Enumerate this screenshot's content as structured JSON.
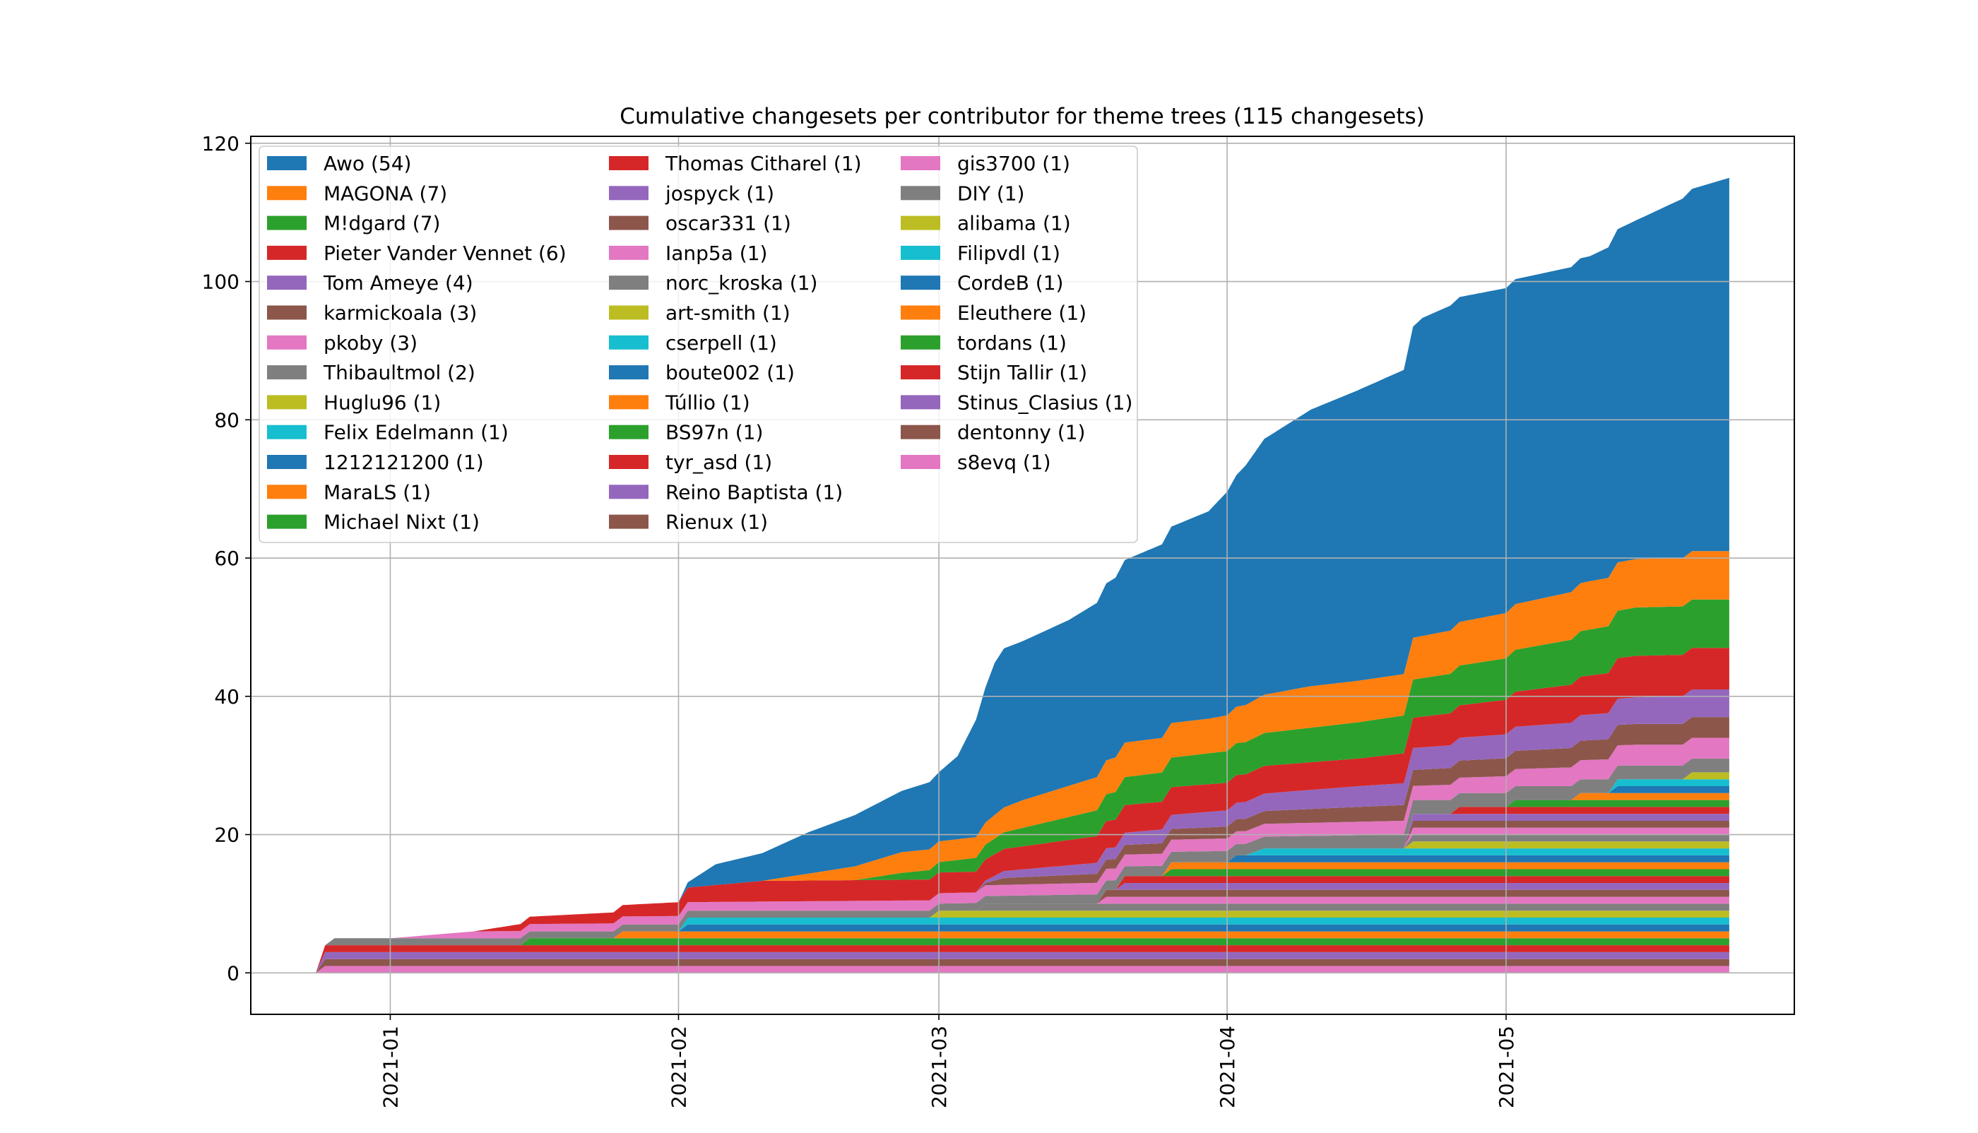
{
  "chart_data": {
    "type": "area",
    "stacked": true,
    "title": "Cumulative changesets per contributor for theme trees (115 changesets)",
    "xlabel": "",
    "ylabel": "",
    "x_type": "date",
    "x_range": [
      "2020-12-17",
      "2021-06-01"
    ],
    "ylim": [
      -6,
      121
    ],
    "x_ticks": [
      "2021-01-01",
      "2021-02-01",
      "2021-03-01",
      "2021-04-01",
      "2021-05-01"
    ],
    "x_tick_labels": [
      "2021-01",
      "2021-02",
      "2021-03",
      "2021-04",
      "2021-05"
    ],
    "y_ticks": [
      0,
      20,
      40,
      60,
      80,
      100,
      120
    ],
    "y_tick_labels": [
      "0",
      "20",
      "40",
      "60",
      "80",
      "100",
      "120"
    ],
    "grid": true,
    "legend_position": "top-left",
    "legend_columns": 3,
    "series": [
      {
        "name": "Awo (54)",
        "color": "#1f77b4",
        "points": [
          [
            "2021-02-01",
            0
          ],
          [
            "2021-02-05",
            3
          ],
          [
            "2021-02-10",
            4
          ],
          [
            "2021-02-15",
            6
          ],
          [
            "2021-02-22",
            8
          ],
          [
            "2021-03-01",
            10
          ],
          [
            "2021-03-03",
            12
          ],
          [
            "2021-03-05",
            17
          ],
          [
            "2021-03-07",
            22
          ],
          [
            "2021-03-08",
            23
          ],
          [
            "2021-03-10",
            23
          ],
          [
            "2021-03-15",
            24
          ],
          [
            "2021-03-20",
            26
          ],
          [
            "2021-03-25",
            28
          ],
          [
            "2021-03-30",
            30
          ],
          [
            "2021-04-05",
            37
          ],
          [
            "2021-04-10",
            40
          ],
          [
            "2021-04-15",
            42
          ],
          [
            "2021-04-20",
            44
          ],
          [
            "2021-04-22",
            46
          ],
          [
            "2021-04-25",
            47
          ],
          [
            "2021-04-30",
            47
          ],
          [
            "2021-05-05",
            47
          ],
          [
            "2021-05-10",
            47
          ],
          [
            "2021-05-15",
            49
          ],
          [
            "2021-05-20",
            52
          ],
          [
            "2021-05-25",
            54
          ]
        ]
      },
      {
        "name": "MAGONA (7)",
        "color": "#ff7f0e",
        "points": [
          [
            "2021-02-10",
            0
          ],
          [
            "2021-02-15",
            1
          ],
          [
            "2021-02-20",
            2
          ],
          [
            "2021-02-25",
            3
          ],
          [
            "2021-03-01",
            3
          ],
          [
            "2021-03-05",
            3
          ],
          [
            "2021-03-10",
            4
          ],
          [
            "2021-03-20",
            5
          ],
          [
            "2021-03-30",
            5
          ],
          [
            "2021-04-10",
            6
          ],
          [
            "2021-04-20",
            6
          ],
          [
            "2021-05-10",
            7
          ],
          [
            "2021-05-25",
            7
          ]
        ]
      },
      {
        "name": "M!dgard (7)",
        "color": "#2ca02c",
        "points": [
          [
            "2021-02-20",
            0
          ],
          [
            "2021-02-25",
            1
          ],
          [
            "2021-03-05",
            2
          ],
          [
            "2021-03-20",
            4
          ],
          [
            "2021-04-10",
            5
          ],
          [
            "2021-05-01",
            6
          ],
          [
            "2021-05-15",
            7
          ],
          [
            "2021-05-25",
            7
          ]
        ]
      },
      {
        "name": "Pieter Vander Vennet (6)",
        "color": "#d62728",
        "points": [
          [
            "2021-01-10",
            0
          ],
          [
            "2021-01-15",
            1
          ],
          [
            "2021-02-01",
            2
          ],
          [
            "2021-02-10",
            3
          ],
          [
            "2021-03-05",
            3
          ],
          [
            "2021-03-20",
            4
          ],
          [
            "2021-04-15",
            4
          ],
          [
            "2021-05-01",
            5
          ],
          [
            "2021-05-15",
            6
          ],
          [
            "2021-05-25",
            6
          ]
        ]
      },
      {
        "name": "Tom Ameye (4)",
        "color": "#9467bd",
        "points": [
          [
            "2021-03-05",
            0
          ],
          [
            "2021-03-08",
            1
          ],
          [
            "2021-03-25",
            2
          ],
          [
            "2021-04-15",
            3
          ],
          [
            "2021-05-20",
            4
          ],
          [
            "2021-05-25",
            4
          ]
        ]
      },
      {
        "name": "karmickoala (3)",
        "color": "#8c564b",
        "points": [
          [
            "2021-03-05",
            0
          ],
          [
            "2021-03-08",
            1
          ],
          [
            "2021-04-10",
            2
          ],
          [
            "2021-05-15",
            3
          ],
          [
            "2021-05-25",
            3
          ]
        ]
      },
      {
        "name": "pkoby (3)",
        "color": "#e377c2",
        "points": [
          [
            "2021-01-01",
            0
          ],
          [
            "2021-01-10",
            1
          ],
          [
            "2021-04-20",
            2
          ],
          [
            "2021-05-15",
            3
          ],
          [
            "2021-05-25",
            3
          ]
        ]
      },
      {
        "name": "Thibaultmol (2)",
        "color": "#7f7f7f",
        "points": [
          [
            "2020-12-25",
            0
          ],
          [
            "2020-12-26",
            1
          ],
          [
            "2021-02-28",
            1
          ],
          [
            "2021-04-20",
            2
          ],
          [
            "2021-05-25",
            2
          ]
        ]
      },
      {
        "name": "Huglu96 (1)",
        "color": "#bcbd22",
        "points": [
          [
            "2021-05-20",
            0
          ],
          [
            "2021-05-21",
            1
          ],
          [
            "2021-05-25",
            1
          ]
        ]
      },
      {
        "name": "Felix Edelmann (1)",
        "color": "#17becf",
        "points": [
          [
            "2021-05-12",
            0
          ],
          [
            "2021-05-13",
            1
          ],
          [
            "2021-05-25",
            1
          ]
        ]
      },
      {
        "name": "1212121200 (1)",
        "color": "#1f77b4",
        "points": [
          [
            "2021-05-12",
            0
          ],
          [
            "2021-05-13",
            1
          ],
          [
            "2021-05-25",
            1
          ]
        ]
      },
      {
        "name": "MaraLS (1)",
        "color": "#ff7f0e",
        "points": [
          [
            "2021-05-08",
            0
          ],
          [
            "2021-05-09",
            1
          ],
          [
            "2021-05-25",
            1
          ]
        ]
      },
      {
        "name": "Michael Nixt (1)",
        "color": "#2ca02c",
        "points": [
          [
            "2021-05-01",
            0
          ],
          [
            "2021-05-02",
            1
          ],
          [
            "2021-05-25",
            1
          ]
        ]
      },
      {
        "name": "Thomas Citharel (1)",
        "color": "#d62728",
        "points": [
          [
            "2021-04-25",
            0
          ],
          [
            "2021-04-26",
            1
          ],
          [
            "2021-05-25",
            1
          ]
        ]
      },
      {
        "name": "jospyck (1)",
        "color": "#9467bd",
        "points": [
          [
            "2021-04-20",
            0
          ],
          [
            "2021-04-21",
            1
          ],
          [
            "2021-05-25",
            1
          ]
        ]
      },
      {
        "name": "oscar331 (1)",
        "color": "#8c564b",
        "points": [
          [
            "2021-04-20",
            0
          ],
          [
            "2021-04-21",
            1
          ],
          [
            "2021-05-25",
            1
          ]
        ]
      },
      {
        "name": "Ianp5a (1)",
        "color": "#e377c2",
        "points": [
          [
            "2021-04-20",
            0
          ],
          [
            "2021-04-21",
            1
          ],
          [
            "2021-05-25",
            1
          ]
        ]
      },
      {
        "name": "norc_kroska (1)",
        "color": "#7f7f7f",
        "points": [
          [
            "2021-04-20",
            0
          ],
          [
            "2021-04-21",
            1
          ],
          [
            "2021-05-25",
            1
          ]
        ]
      },
      {
        "name": "art-smith (1)",
        "color": "#bcbd22",
        "points": [
          [
            "2021-04-20",
            0
          ],
          [
            "2021-04-21",
            1
          ],
          [
            "2021-05-25",
            1
          ]
        ]
      },
      {
        "name": "cserpell (1)",
        "color": "#17becf",
        "points": [
          [
            "2021-04-03",
            0
          ],
          [
            "2021-04-05",
            1
          ],
          [
            "2021-05-25",
            1
          ]
        ]
      },
      {
        "name": "boute002 (1)",
        "color": "#1f77b4",
        "points": [
          [
            "2021-04-01",
            0
          ],
          [
            "2021-04-02",
            1
          ],
          [
            "2021-05-25",
            1
          ]
        ]
      },
      {
        "name": "Túllio (1)",
        "color": "#ff7f0e",
        "points": [
          [
            "2021-03-25",
            0
          ],
          [
            "2021-03-26",
            1
          ],
          [
            "2021-05-25",
            1
          ]
        ]
      },
      {
        "name": "BS97n (1)",
        "color": "#2ca02c",
        "points": [
          [
            "2021-03-25",
            0
          ],
          [
            "2021-03-26",
            1
          ],
          [
            "2021-05-25",
            1
          ]
        ]
      },
      {
        "name": "tyr_asd (1)",
        "color": "#d62728",
        "points": [
          [
            "2021-03-20",
            0
          ],
          [
            "2021-03-21",
            1
          ],
          [
            "2021-05-25",
            1
          ]
        ]
      },
      {
        "name": "Reino Baptista (1)",
        "color": "#9467bd",
        "points": [
          [
            "2021-03-20",
            0
          ],
          [
            "2021-03-21",
            1
          ],
          [
            "2021-05-25",
            1
          ]
        ]
      },
      {
        "name": "Rienux (1)",
        "color": "#8c564b",
        "points": [
          [
            "2021-03-18",
            0
          ],
          [
            "2021-03-19",
            1
          ],
          [
            "2021-05-25",
            1
          ]
        ]
      },
      {
        "name": "gis3700 (1)",
        "color": "#e377c2",
        "points": [
          [
            "2021-03-18",
            0
          ],
          [
            "2021-03-19",
            1
          ],
          [
            "2021-05-25",
            1
          ]
        ]
      },
      {
        "name": "DIY (1)",
        "color": "#7f7f7f",
        "points": [
          [
            "2021-03-05",
            0
          ],
          [
            "2021-03-06",
            1
          ],
          [
            "2021-05-25",
            1
          ]
        ]
      },
      {
        "name": "alibama (1)",
        "color": "#bcbd22",
        "points": [
          [
            "2021-02-28",
            0
          ],
          [
            "2021-03-01",
            1
          ],
          [
            "2021-05-25",
            1
          ]
        ]
      },
      {
        "name": "Filipvdl (1)",
        "color": "#17becf",
        "points": [
          [
            "2021-02-01",
            0
          ],
          [
            "2021-02-02",
            1
          ],
          [
            "2021-05-25",
            1
          ]
        ]
      },
      {
        "name": "CordeB (1)",
        "color": "#1f77b4",
        "points": [
          [
            "2021-02-01",
            0
          ],
          [
            "2021-02-02",
            1
          ],
          [
            "2021-05-25",
            1
          ]
        ]
      },
      {
        "name": "Eleuthere (1)",
        "color": "#ff7f0e",
        "points": [
          [
            "2021-01-25",
            0
          ],
          [
            "2021-01-26",
            1
          ],
          [
            "2021-05-25",
            1
          ]
        ]
      },
      {
        "name": "tordans (1)",
        "color": "#2ca02c",
        "points": [
          [
            "2021-01-15",
            0
          ],
          [
            "2021-01-16",
            1
          ],
          [
            "2021-05-25",
            1
          ]
        ]
      },
      {
        "name": "Stijn Tallir (1)",
        "color": "#d62728",
        "points": [
          [
            "2020-12-24",
            0
          ],
          [
            "2020-12-25",
            1
          ],
          [
            "2021-05-25",
            1
          ]
        ]
      },
      {
        "name": "Stinus_Clasius (1)",
        "color": "#9467bd",
        "points": [
          [
            "2020-12-24",
            0
          ],
          [
            "2020-12-25",
            1
          ],
          [
            "2021-05-25",
            1
          ]
        ]
      },
      {
        "name": "dentonny (1)",
        "color": "#8c564b",
        "points": [
          [
            "2020-12-24",
            0
          ],
          [
            "2020-12-25",
            1
          ],
          [
            "2021-05-25",
            1
          ]
        ]
      },
      {
        "name": "s8evq (1)",
        "color": "#e377c2",
        "points": [
          [
            "2020-12-24",
            0
          ],
          [
            "2020-12-25",
            1
          ],
          [
            "2021-05-25",
            1
          ]
        ]
      }
    ]
  }
}
